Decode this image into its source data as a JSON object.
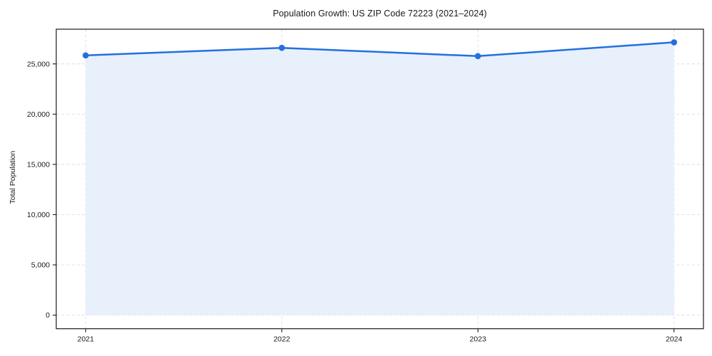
{
  "figure": {
    "title": "Population Growth: US ZIP Code 72223 (2021–2024)"
  },
  "chart_data": {
    "type": "line",
    "title": "Population Growth: US ZIP Code 72223 (2021–2024)",
    "xlabel": "",
    "ylabel": "Total Population",
    "categories": [
      "2021",
      "2022",
      "2023",
      "2024"
    ],
    "x": [
      2021,
      2022,
      2023,
      2024
    ],
    "series": [
      {
        "name": "Total Population",
        "values": [
          25850,
          26600,
          25780,
          27150
        ],
        "marker": "circle",
        "filled_to_zero": true
      }
    ],
    "xlim": [
      2020.85,
      2024.15
    ],
    "ylim": [
      -1355,
      28455
    ],
    "yticks": {
      "values": [
        0,
        5000,
        10000,
        15000,
        20000,
        25000
      ],
      "labels": [
        "0",
        "5,000",
        "10,000",
        "15,000",
        "20,000",
        "25,000"
      ]
    },
    "grid": {
      "show": true,
      "style": "dashed",
      "color": "#dcdcdc"
    },
    "legend": {
      "show": false
    },
    "colors": {
      "line": "#2270e0",
      "marker": "#2270e0",
      "area_fill": "#e8f0fc",
      "spine": "#1a1a1a",
      "tick_label": "#1a1a1a",
      "background": "#ffffff"
    }
  }
}
